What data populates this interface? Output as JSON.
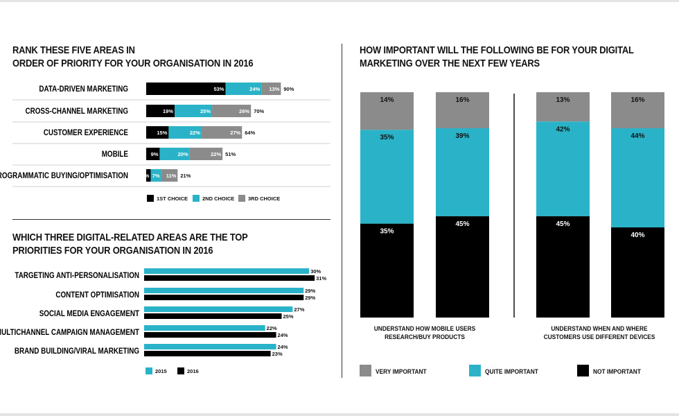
{
  "section1": {
    "title_lines": [
      "RANK THESE FIVE AREAS IN",
      "ORDER OF PRIORITY FOR YOUR ORGANISATION IN 2016"
    ]
  },
  "section2": {
    "title_lines": [
      "WHICH THREE DIGITAL-RELATED AREAS ARE THE TOP",
      "PRIORITIES FOR YOUR ORGANISATION IN 2016"
    ]
  },
  "section3": {
    "title_lines": [
      "HOW IMPORTANT WILL THE FOLLOWING BE FOR YOUR DIGITAL",
      "MARKETING OVER THE NEXT FEW YEARS"
    ]
  },
  "colors": {
    "black": "#000000",
    "teal": "#2ab3c8",
    "gray": "#8b8b8b"
  },
  "chart_data": [
    {
      "type": "bar",
      "orientation": "horizontal",
      "stacked": true,
      "title": "RANK THESE FIVE AREAS IN ORDER OF PRIORITY FOR YOUR ORGANISATION IN 2016",
      "categories": [
        "DATA-DRIVEN MARKETING",
        "CROSS-CHANNEL MARKETING",
        "CUSTOMER EXPERIENCE",
        "MOBILE",
        "PROGRAMMATIC BUYING/OPTIMISATION"
      ],
      "series": [
        {
          "name": "1ST CHOICE",
          "values": [
            53,
            19,
            15,
            9,
            3
          ],
          "labels": [
            "53%",
            "19%",
            "15%",
            "9%",
            "3%"
          ]
        },
        {
          "name": "2ND CHOICE",
          "values": [
            24,
            25,
            22,
            20,
            7
          ],
          "labels": [
            "24%",
            "25%",
            "22%",
            "20%",
            "7%"
          ]
        },
        {
          "name": "3RD CHOICE",
          "values": [
            13,
            26,
            27,
            22,
            11
          ],
          "labels": [
            "13%",
            "26%",
            "27%",
            "22%",
            "11%"
          ]
        }
      ],
      "totals": [
        "90%",
        "70%",
        "64%",
        "51%",
        "21%"
      ],
      "legend": [
        "1ST CHOICE",
        "2ND CHOICE",
        "3RD CHOICE"
      ],
      "xlim": [
        0,
        100
      ]
    },
    {
      "type": "bar",
      "orientation": "horizontal",
      "stacked": false,
      "title": "WHICH THREE DIGITAL-RELATED AREAS ARE THE TOP PRIORITIES FOR YOUR ORGANISATION IN 2016",
      "categories": [
        "TARGETING ANTI-PERSONALISATION",
        "CONTENT OPTIMISATION",
        "SOCIAL MEDIA ENGAGEMENT",
        "MULTICHANNEL CAMPAIGN MANAGEMENT",
        "BRAND BUILDING/VIRAL MARKETING"
      ],
      "series": [
        {
          "name": "2015",
          "values": [
            30,
            29,
            27,
            22,
            24
          ],
          "labels": [
            "30%",
            "29%",
            "27%",
            "22%",
            "24%"
          ]
        },
        {
          "name": "2016",
          "values": [
            31,
            29,
            25,
            24,
            23
          ],
          "labels": [
            "31%",
            "29%",
            "25%",
            "24%",
            "23%"
          ]
        }
      ],
      "legend": [
        "2015",
        "2016"
      ],
      "xlim": [
        0,
        100
      ]
    },
    {
      "type": "bar",
      "orientation": "vertical",
      "stacked": true,
      "title": "HOW IMPORTANT WILL THE FOLLOWING BE FOR YOUR DIGITAL MARKETING OVER THE NEXT FEW YEARS",
      "groups": [
        {
          "label_lines": [
            "UNDERSTAND HOW MOBILE USERS",
            "RESEARCH/BUY PRODUCTS"
          ]
        },
        {
          "label_lines": [
            "UNDERSTAND WHEN AND WHERE",
            "CUSTOMERS USE DIFFERENT DEVICES"
          ]
        }
      ],
      "columns": [
        {
          "group": 0,
          "not": 35,
          "quite": 35,
          "very": 14,
          "labels": {
            "not": "35%",
            "quite": "35%",
            "very": "14%"
          }
        },
        {
          "group": 0,
          "not": 45,
          "quite": 39,
          "very": 16,
          "labels": {
            "not": "45%",
            "quite": "39%",
            "very": "16%"
          }
        },
        {
          "group": 1,
          "not": 45,
          "quite": 42,
          "very": 13,
          "labels": {
            "not": "45%",
            "quite": "42%",
            "very": "13%"
          }
        },
        {
          "group": 1,
          "not": 40,
          "quite": 44,
          "very": 16,
          "labels": {
            "not": "40%",
            "quite": "44%",
            "very": "16%"
          }
        }
      ],
      "legend": [
        "VERY IMPORTANT",
        "QUITE IMPORTANT",
        "NOT IMPORTANT"
      ],
      "ylim": [
        0,
        100
      ]
    }
  ]
}
